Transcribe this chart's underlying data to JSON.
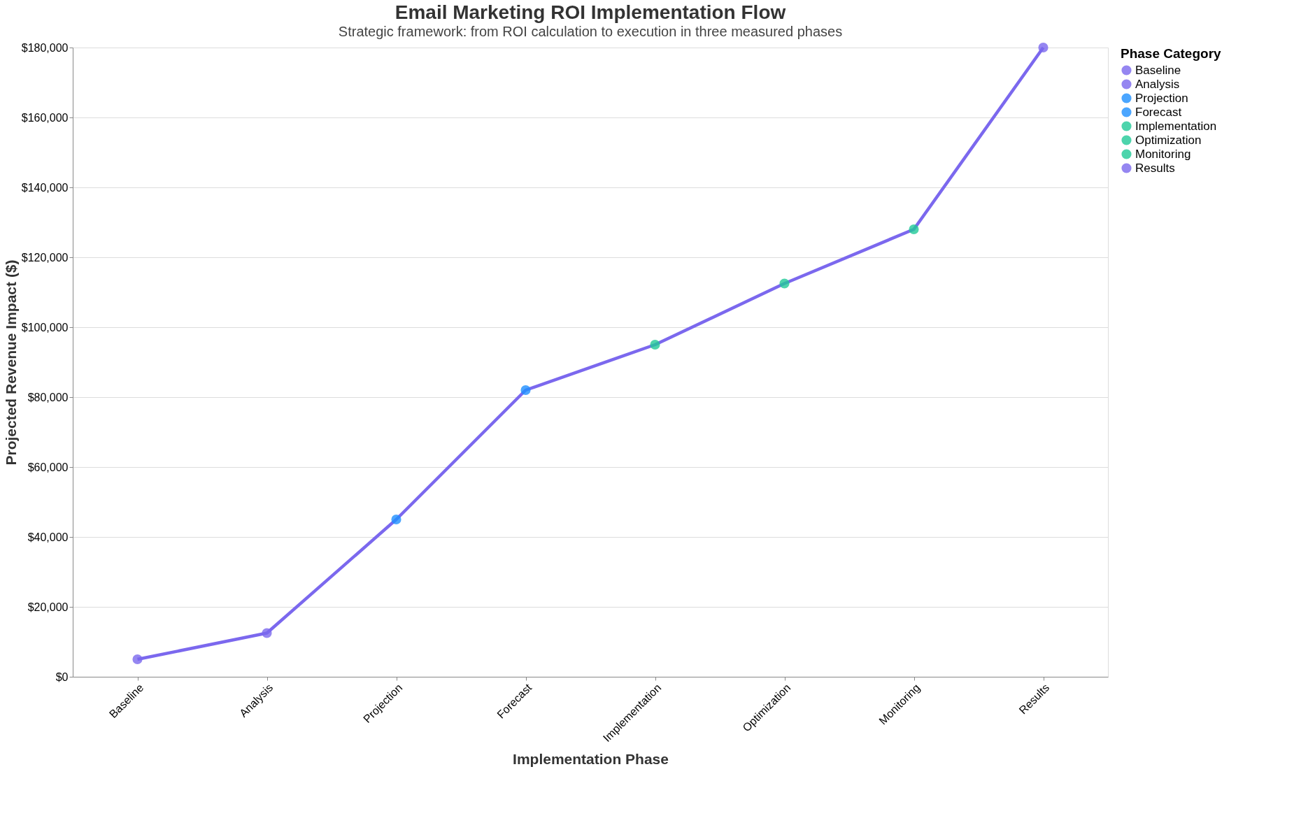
{
  "chart_data": {
    "type": "line",
    "title": "Email Marketing ROI Implementation Flow",
    "subtitle": "Strategic framework: from ROI calculation to execution in three measured phases",
    "xlabel": "Implementation Phase",
    "ylabel": "Projected Revenue Impact ($)",
    "legend_title": "Phase Category",
    "legend": "top right",
    "grid": "y",
    "marker": "circle",
    "line_style": "solid",
    "categories": [
      "Baseline",
      "Analysis",
      "Projection",
      "Forecast",
      "Implementation",
      "Optimization",
      "Monitoring",
      "Results"
    ],
    "series": [
      {
        "marker": "none",
        "color": "#7b68ee",
        "values": [
          5000,
          12500,
          45000,
          82000,
          95000,
          112500,
          128000,
          180000
        ]
      },
      {
        "type": "scatter",
        "name": "Baseline",
        "color": "#7b68ee",
        "values": [
          5000,
          null,
          null,
          null,
          null,
          null,
          null,
          null
        ]
      },
      {
        "type": "scatter",
        "name": "Analysis",
        "color": "#7b68ee",
        "values": [
          null,
          12500,
          null,
          null,
          null,
          null,
          null,
          null
        ]
      },
      {
        "type": "scatter",
        "name": "Projection",
        "color": "#1e90ff",
        "values": [
          null,
          null,
          45000,
          null,
          null,
          null,
          null,
          null
        ]
      },
      {
        "type": "scatter",
        "name": "Forecast",
        "color": "#1e90ff",
        "values": [
          null,
          null,
          null,
          82000,
          null,
          null,
          null,
          null
        ]
      },
      {
        "type": "scatter",
        "name": "Implementation",
        "color": "#20c997",
        "values": [
          null,
          null,
          null,
          null,
          95000,
          null,
          null,
          null
        ]
      },
      {
        "type": "scatter",
        "name": "Optimization",
        "color": "#20c997",
        "values": [
          null,
          null,
          null,
          null,
          null,
          112500,
          null,
          null
        ]
      },
      {
        "type": "scatter",
        "name": "Monitoring",
        "color": "#20c997",
        "values": [
          null,
          null,
          null,
          null,
          null,
          null,
          128000,
          null
        ]
      },
      {
        "type": "scatter",
        "name": "Results",
        "color": "#7b68ee",
        "values": [
          null,
          null,
          null,
          null,
          null,
          null,
          null,
          180000
        ]
      }
    ],
    "ylim": [
      0,
      180000
    ],
    "yticks": [
      {
        "value": 0,
        "label": "$0"
      },
      {
        "value": 20000,
        "label": "$20,000"
      },
      {
        "value": 40000,
        "label": "$40,000"
      },
      {
        "value": 60000,
        "label": "$60,000"
      },
      {
        "value": 80000,
        "label": "$80,000"
      },
      {
        "value": 100000,
        "label": "$100,000"
      },
      {
        "value": 120000,
        "label": "$120,000"
      },
      {
        "value": 140000,
        "label": "$140,000"
      },
      {
        "value": 160000,
        "label": "$160,000"
      },
      {
        "value": 180000,
        "label": "$180,000"
      }
    ]
  }
}
